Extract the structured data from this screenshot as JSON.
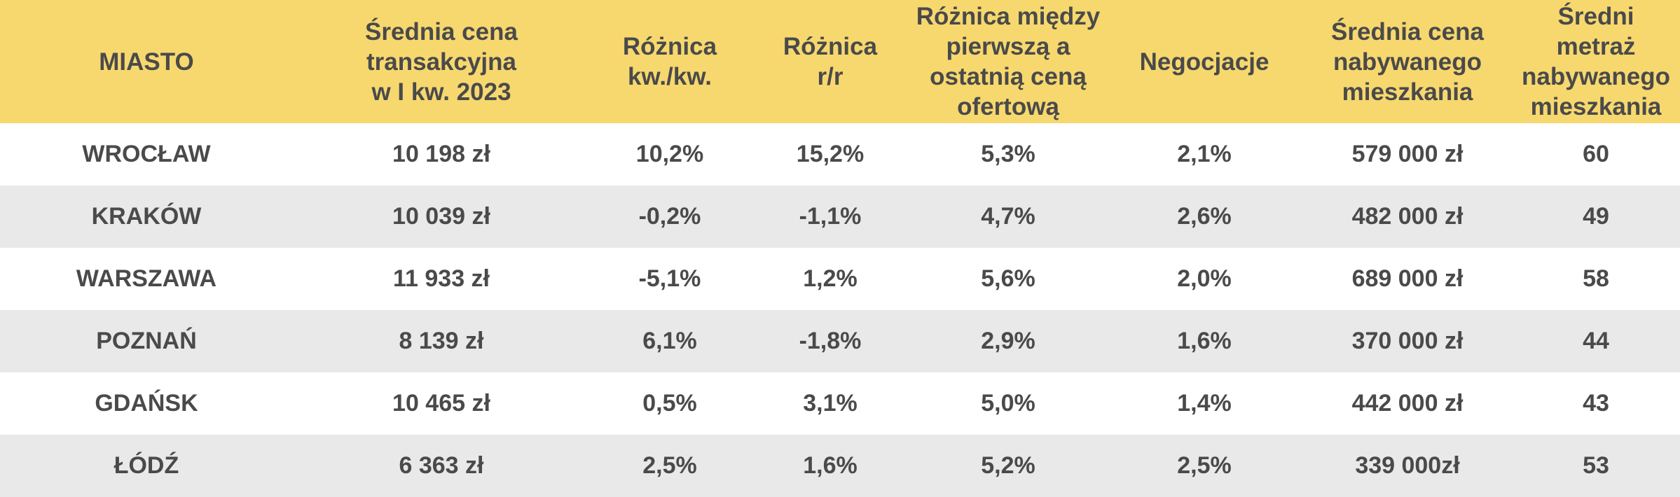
{
  "table": {
    "headers": [
      "MIASTO",
      "Średnia cena\ntransakcyjna\nw I kw. 2023",
      "Różnica\nkw./kw.",
      "Różnica\nr/r",
      "Różnica między\npierwszą a\nostatnią ceną\nofertową",
      "Negocjacje",
      "Średnia cena\nnabywanego\nmieszkania",
      "Średni metraż\nnabywanego\nmieszkania"
    ],
    "rows": [
      [
        "WROCŁAW",
        "10 198 zł",
        "10,2%",
        "15,2%",
        "5,3%",
        "2,1%",
        "579 000 zł",
        "60"
      ],
      [
        "KRAKÓW",
        "10 039 zł",
        "-0,2%",
        "-1,1%",
        "4,7%",
        "2,6%",
        "482 000 zł",
        "49"
      ],
      [
        "WARSZAWA",
        "11 933 zł",
        "-5,1%",
        "1,2%",
        "5,6%",
        "2,0%",
        "689 000 zł",
        "58"
      ],
      [
        "POZNAŃ",
        "8 139 zł",
        "6,1%",
        "-1,8%",
        "2,9%",
        "1,6%",
        "370 000 zł",
        "44"
      ],
      [
        "GDAŃSK",
        "10 465 zł",
        "0,5%",
        "3,1%",
        "5,0%",
        "1,4%",
        "442 000 zł",
        "43"
      ],
      [
        "ŁÓDŹ",
        "6 363 zł",
        "2,5%",
        "1,6%",
        "5,2%",
        "2,5%",
        "339 000zł",
        "53"
      ]
    ]
  },
  "colors": {
    "header_bg": "#f7d86e",
    "row_alt_bg": "#e9e9e9",
    "text": "#4a4a4a"
  }
}
